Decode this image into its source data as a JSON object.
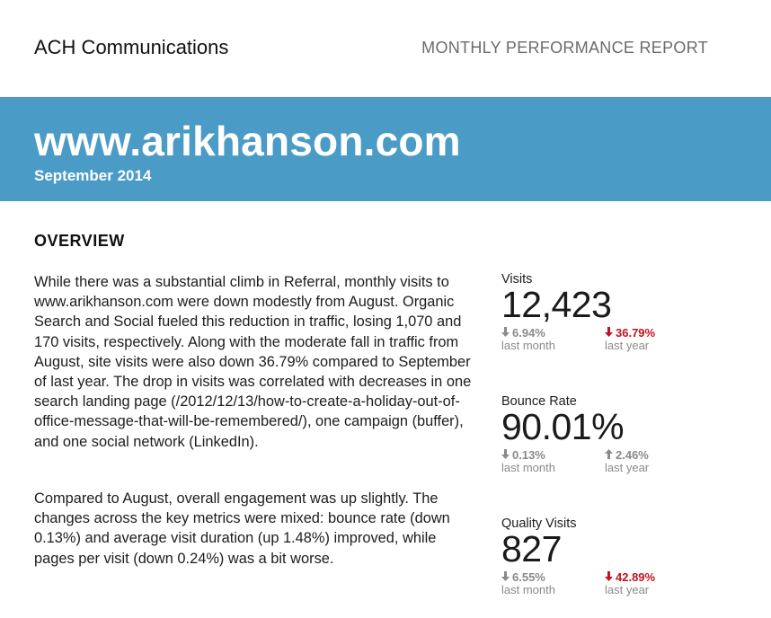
{
  "header": {
    "company": "ACH Communications",
    "report_label": "MONTHLY PERFORMANCE REPORT"
  },
  "banner": {
    "site": "www.arikhanson.com",
    "period": "September 2014",
    "color": "#4a9bc6"
  },
  "overview": {
    "title": "OVERVIEW",
    "paragraphs": [
      "While there was a substantial climb in Referral, monthly visits to www.arikhanson.com were down modestly from August. Organic Search and Social fueled this reduction in traffic, losing 1,070 and 170 visits, respectively. Along with the moderate fall in traffic from August, site visits were also down 36.79% compared to September of last year. The drop in visits was correlated with decreases in one search landing page (/2012/12/13/how-to-create-a-holiday-out-of-office-message-that-will-be-remembered/), one campaign (buffer), and one social network (LinkedIn).",
      "Compared to August, overall engagement was up slightly. The changes across the key metrics were mixed: bounce rate (down 0.13%) and average visit duration (up 1.48%) improved, while pages per visit (down 0.24%) was a bit worse."
    ]
  },
  "metrics": [
    {
      "label": "Visits",
      "value": "12,423",
      "last_month": {
        "arrow": "down",
        "arrow_char": "🡇",
        "value": "6.94%",
        "caption": "last month",
        "color": "gray"
      },
      "last_year": {
        "arrow": "down",
        "arrow_char": "🡇",
        "value": "36.79%",
        "caption": "last year",
        "color": "red"
      }
    },
    {
      "label": "Bounce Rate",
      "value": "90.01%",
      "last_month": {
        "arrow": "down",
        "arrow_char": "🡇",
        "value": "0.13%",
        "caption": "last month",
        "color": "gray"
      },
      "last_year": {
        "arrow": "up",
        "arrow_char": "🡅",
        "value": "2.46%",
        "caption": "last year",
        "color": "gray"
      }
    },
    {
      "label": "Quality Visits",
      "value": "827",
      "last_month": {
        "arrow": "down",
        "arrow_char": "🡇",
        "value": "6.55%",
        "caption": "last month",
        "color": "gray"
      },
      "last_year": {
        "arrow": "down",
        "arrow_char": "🡇",
        "value": "42.89%",
        "caption": "last year",
        "color": "red"
      }
    }
  ]
}
